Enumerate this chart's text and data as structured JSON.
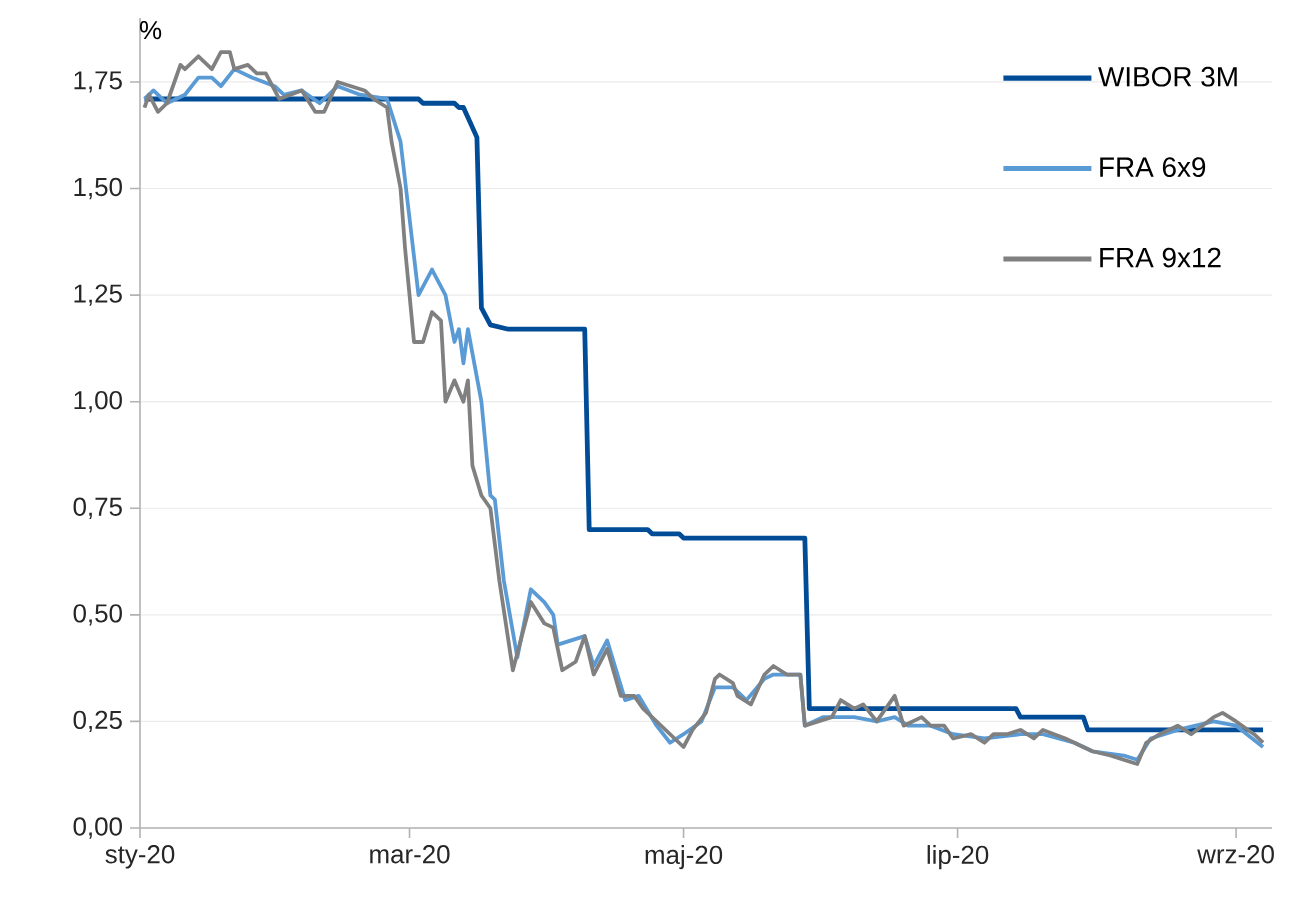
{
  "chart_data": {
    "type": "line",
    "ylabel": "%",
    "grid": "y",
    "legend": "top right",
    "xlim": [
      "2020-01-01",
      "2020-09-09"
    ],
    "xticks": [
      {
        "value": "2020-01-01",
        "label": "sty-20"
      },
      {
        "value": "2020-03-01",
        "label": "mar-20"
      },
      {
        "value": "2020-05-01",
        "label": "maj-20"
      },
      {
        "value": "2020-07-01",
        "label": "lip-20"
      },
      {
        "value": "2020-09-01",
        "label": "wrz-20"
      }
    ],
    "ylim": [
      0,
      1.9
    ],
    "yticks": [
      {
        "value": 0,
        "label": "0,00"
      },
      {
        "value": 0.25,
        "label": "0,25"
      },
      {
        "value": 0.5,
        "label": "0,50"
      },
      {
        "value": 0.75,
        "label": "0,75"
      },
      {
        "value": 1,
        "label": "1,00"
      },
      {
        "value": 1.25,
        "label": "1,25"
      },
      {
        "value": 1.5,
        "label": "1,50"
      },
      {
        "value": 1.75,
        "label": "1,75"
      }
    ],
    "series": [
      {
        "name": "WIBOR 3M",
        "color": "#004c97",
        "x": [
          "2020-01-02",
          "2020-03-03",
          "2020-03-04",
          "2020-03-11",
          "2020-03-12",
          "2020-03-13",
          "2020-03-16",
          "2020-03-17",
          "2020-03-19",
          "2020-03-23",
          "2020-04-09",
          "2020-04-10",
          "2020-04-23",
          "2020-04-24",
          "2020-04-30",
          "2020-05-01",
          "2020-05-28",
          "2020-05-29",
          "2020-07-14",
          "2020-07-15",
          "2020-07-29",
          "2020-07-30",
          "2020-09-07"
        ],
        "values": [
          1.71,
          1.71,
          1.7,
          1.7,
          1.69,
          1.69,
          1.62,
          1.22,
          1.18,
          1.17,
          1.17,
          0.7,
          0.7,
          0.69,
          0.69,
          0.68,
          0.68,
          0.28,
          0.28,
          0.26,
          0.26,
          0.23,
          0.23
        ]
      },
      {
        "name": "FRA 6x9",
        "color": "#5b9bd5",
        "x": [
          "2020-01-02",
          "2020-01-04",
          "2020-01-07",
          "2020-01-11",
          "2020-01-14",
          "2020-01-17",
          "2020-01-19",
          "2020-01-22",
          "2020-01-26",
          "2020-01-31",
          "2020-02-02",
          "2020-02-06",
          "2020-02-10",
          "2020-02-14",
          "2020-02-19",
          "2020-02-25",
          "2020-02-28",
          "2020-03-01",
          "2020-03-03",
          "2020-03-06",
          "2020-03-09",
          "2020-03-11",
          "2020-03-12",
          "2020-03-13",
          "2020-03-14",
          "2020-03-17",
          "2020-03-19",
          "2020-03-20",
          "2020-03-22",
          "2020-03-25",
          "2020-03-28",
          "2020-03-31",
          "2020-04-02",
          "2020-04-03",
          "2020-04-06",
          "2020-04-09",
          "2020-04-11",
          "2020-04-14",
          "2020-04-18",
          "2020-04-21",
          "2020-04-25",
          "2020-04-28",
          "2020-05-01",
          "2020-05-05",
          "2020-05-08",
          "2020-05-12",
          "2020-05-15",
          "2020-05-19",
          "2020-05-21",
          "2020-05-27",
          "2020-05-28",
          "2020-06-01",
          "2020-06-08",
          "2020-06-13",
          "2020-06-17",
          "2020-06-20",
          "2020-06-25",
          "2020-06-30",
          "2020-07-07",
          "2020-07-15",
          "2020-07-20",
          "2020-07-27",
          "2020-07-31",
          "2020-08-07",
          "2020-08-10",
          "2020-08-13",
          "2020-08-19",
          "2020-08-27",
          "2020-09-01",
          "2020-09-07"
        ],
        "values": [
          1.71,
          1.73,
          1.7,
          1.72,
          1.76,
          1.76,
          1.74,
          1.78,
          1.76,
          1.74,
          1.72,
          1.73,
          1.7,
          1.74,
          1.72,
          1.71,
          1.61,
          1.43,
          1.25,
          1.31,
          1.25,
          1.14,
          1.17,
          1.09,
          1.17,
          1.0,
          0.78,
          0.77,
          0.58,
          0.4,
          0.56,
          0.53,
          0.5,
          0.43,
          0.44,
          0.45,
          0.38,
          0.44,
          0.3,
          0.31,
          0.24,
          0.2,
          0.22,
          0.25,
          0.33,
          0.33,
          0.3,
          0.35,
          0.36,
          0.36,
          0.24,
          0.26,
          0.26,
          0.25,
          0.26,
          0.24,
          0.24,
          0.22,
          0.21,
          0.22,
          0.22,
          0.2,
          0.18,
          0.17,
          0.16,
          0.21,
          0.23,
          0.25,
          0.24,
          0.19
        ]
      },
      {
        "name": "FRA 9x12",
        "color": "#808080",
        "x": [
          "2020-01-02",
          "2020-01-03",
          "2020-01-05",
          "2020-01-07",
          "2020-01-10",
          "2020-01-11",
          "2020-01-14",
          "2020-01-17",
          "2020-01-19",
          "2020-01-21",
          "2020-01-22",
          "2020-01-25",
          "2020-01-27",
          "2020-01-29",
          "2020-02-01",
          "2020-02-06",
          "2020-02-09",
          "2020-02-11",
          "2020-02-14",
          "2020-02-17",
          "2020-02-20",
          "2020-02-22",
          "2020-02-25",
          "2020-02-26",
          "2020-02-28",
          "2020-02-29",
          "2020-03-02",
          "2020-03-04",
          "2020-03-06",
          "2020-03-08",
          "2020-03-09",
          "2020-03-11",
          "2020-03-13",
          "2020-03-14",
          "2020-03-15",
          "2020-03-17",
          "2020-03-19",
          "2020-03-21",
          "2020-03-24",
          "2020-03-28",
          "2020-03-31",
          "2020-04-02",
          "2020-04-04",
          "2020-04-07",
          "2020-04-09",
          "2020-04-11",
          "2020-04-14",
          "2020-04-17",
          "2020-04-20",
          "2020-04-22",
          "2020-04-25",
          "2020-04-28",
          "2020-05-01",
          "2020-05-03",
          "2020-05-06",
          "2020-05-08",
          "2020-05-09",
          "2020-05-12",
          "2020-05-13",
          "2020-05-16",
          "2020-05-19",
          "2020-05-21",
          "2020-05-24",
          "2020-05-27",
          "2020-05-28",
          "2020-05-31",
          "2020-06-03",
          "2020-06-05",
          "2020-06-08",
          "2020-06-10",
          "2020-06-13",
          "2020-06-15",
          "2020-06-17",
          "2020-06-19",
          "2020-06-23",
          "2020-06-25",
          "2020-06-28",
          "2020-06-30",
          "2020-07-04",
          "2020-07-07",
          "2020-07-09",
          "2020-07-12",
          "2020-07-15",
          "2020-07-18",
          "2020-07-20",
          "2020-07-25",
          "2020-07-29",
          "2020-07-31",
          "2020-08-04",
          "2020-08-07",
          "2020-08-10",
          "2020-08-12",
          "2020-08-15",
          "2020-08-19",
          "2020-08-22",
          "2020-08-27",
          "2020-08-29",
          "2020-09-01",
          "2020-09-05",
          "2020-09-07"
        ],
        "values": [
          1.69,
          1.72,
          1.68,
          1.7,
          1.79,
          1.78,
          1.81,
          1.78,
          1.82,
          1.82,
          1.78,
          1.79,
          1.77,
          1.77,
          1.71,
          1.73,
          1.68,
          1.68,
          1.75,
          1.74,
          1.73,
          1.71,
          1.69,
          1.61,
          1.5,
          1.36,
          1.14,
          1.14,
          1.21,
          1.19,
          1.0,
          1.05,
          1.0,
          1.05,
          0.85,
          0.78,
          0.75,
          0.58,
          0.37,
          0.53,
          0.48,
          0.47,
          0.37,
          0.39,
          0.45,
          0.36,
          0.42,
          0.31,
          0.31,
          0.28,
          0.25,
          0.22,
          0.19,
          0.23,
          0.27,
          0.35,
          0.36,
          0.34,
          0.31,
          0.29,
          0.36,
          0.38,
          0.36,
          0.36,
          0.24,
          0.25,
          0.26,
          0.3,
          0.28,
          0.29,
          0.25,
          0.28,
          0.31,
          0.24,
          0.26,
          0.24,
          0.24,
          0.21,
          0.22,
          0.2,
          0.22,
          0.22,
          0.23,
          0.21,
          0.23,
          0.21,
          0.19,
          0.18,
          0.17,
          0.16,
          0.15,
          0.2,
          0.22,
          0.24,
          0.22,
          0.26,
          0.27,
          0.25,
          0.22,
          0.2
        ]
      }
    ]
  }
}
